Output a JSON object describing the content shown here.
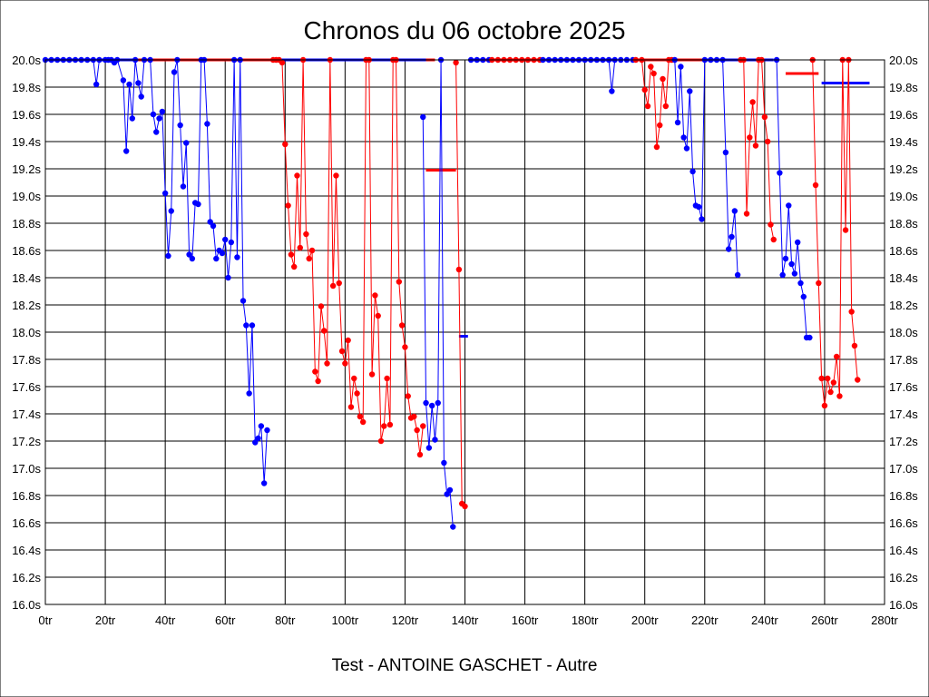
{
  "chart_data": {
    "type": "line",
    "title": "Chronos du 06 octobre 2025",
    "footer": "Test - ANTOINE GASCHET - Autre",
    "xlim": [
      0,
      280
    ],
    "ylim": [
      16.0,
      20.0
    ],
    "x_ticks": [
      "0tr",
      "20tr",
      "40tr",
      "60tr",
      "80tr",
      "100tr",
      "120tr",
      "140tr",
      "160tr",
      "180tr",
      "200tr",
      "220tr",
      "240tr",
      "260tr",
      "280tr"
    ],
    "y_ticks": [
      "16.0s",
      "16.2s",
      "16.4s",
      "16.6s",
      "16.8s",
      "17.0s",
      "17.2s",
      "17.4s",
      "17.6s",
      "17.8s",
      "18.0s",
      "18.2s",
      "18.4s",
      "18.6s",
      "18.8s",
      "19.0s",
      "19.2s",
      "19.4s",
      "19.6s",
      "19.8s",
      "20.0s"
    ],
    "grid": true,
    "colors": {
      "blue": "#0000ff",
      "red": "#ff0000",
      "axis": "#000000"
    },
    "series": [
      {
        "color": "#0000ff",
        "points": [
          [
            0,
            20
          ],
          [
            2,
            20
          ],
          [
            4,
            20
          ],
          [
            6,
            20
          ],
          [
            8,
            20
          ],
          [
            10,
            20
          ],
          [
            12,
            20
          ],
          [
            14,
            20
          ],
          [
            16,
            20
          ],
          [
            17,
            19.82
          ],
          [
            18,
            20
          ],
          [
            20,
            20
          ],
          [
            21,
            20
          ],
          [
            22,
            20
          ],
          [
            23,
            19.98
          ],
          [
            24,
            20
          ],
          [
            26,
            19.85
          ],
          [
            27,
            19.33
          ],
          [
            28,
            19.82
          ],
          [
            29,
            19.57
          ],
          [
            30,
            20
          ],
          [
            31,
            19.83
          ],
          [
            32,
            19.73
          ],
          [
            33,
            20
          ],
          [
            35,
            20
          ],
          [
            36,
            19.6
          ],
          [
            37,
            19.47
          ],
          [
            38,
            19.57
          ],
          [
            39,
            19.62
          ],
          [
            40,
            19.02
          ],
          [
            41,
            18.56
          ],
          [
            42,
            18.89
          ],
          [
            43,
            19.91
          ],
          [
            44,
            20
          ],
          [
            45,
            19.52
          ],
          [
            46,
            19.07
          ],
          [
            47,
            19.39
          ],
          [
            48,
            18.57
          ],
          [
            49,
            18.54
          ],
          [
            50,
            18.95
          ],
          [
            51,
            18.94
          ],
          [
            52,
            20
          ],
          [
            53,
            20
          ],
          [
            54,
            19.53
          ],
          [
            55,
            18.81
          ],
          [
            56,
            18.78
          ],
          [
            57,
            18.54
          ],
          [
            58,
            18.6
          ],
          [
            59,
            18.58
          ],
          [
            60,
            18.68
          ],
          [
            61,
            18.4
          ],
          [
            62,
            18.66
          ],
          [
            63,
            20
          ],
          [
            64,
            18.55
          ],
          [
            65,
            20
          ],
          [
            66,
            18.23
          ],
          [
            67,
            18.05
          ],
          [
            68,
            17.55
          ],
          [
            69,
            18.05
          ],
          [
            70,
            17.19
          ],
          [
            71,
            17.22
          ],
          [
            72,
            17.31
          ],
          [
            73,
            16.89
          ],
          [
            74,
            17.28
          ]
        ]
      },
      {
        "color": "#ff0000",
        "points": [
          [
            76,
            20
          ],
          [
            77,
            20
          ],
          [
            78,
            20
          ],
          [
            79,
            19.98
          ],
          [
            80,
            19.38
          ],
          [
            81,
            18.93
          ],
          [
            82,
            18.57
          ],
          [
            83,
            18.48
          ],
          [
            84,
            19.15
          ],
          [
            85,
            18.62
          ],
          [
            86,
            20
          ],
          [
            87,
            18.72
          ],
          [
            88,
            18.54
          ],
          [
            89,
            18.6
          ],
          [
            90,
            17.71
          ],
          [
            91,
            17.64
          ],
          [
            92,
            18.19
          ],
          [
            93,
            18.01
          ],
          [
            94,
            17.77
          ],
          [
            95,
            20
          ],
          [
            96,
            18.34
          ],
          [
            97,
            19.15
          ],
          [
            98,
            18.36
          ],
          [
            99,
            17.86
          ],
          [
            100,
            17.77
          ],
          [
            101,
            17.94
          ],
          [
            102,
            17.45
          ],
          [
            103,
            17.66
          ],
          [
            104,
            17.55
          ],
          [
            105,
            17.38
          ],
          [
            106,
            17.34
          ],
          [
            107,
            20
          ],
          [
            108,
            20
          ],
          [
            109,
            17.69
          ],
          [
            110,
            18.27
          ],
          [
            111,
            18.12
          ],
          [
            112,
            17.2
          ],
          [
            113,
            17.31
          ],
          [
            114,
            17.66
          ],
          [
            115,
            17.32
          ],
          [
            116,
            20
          ],
          [
            117,
            20
          ],
          [
            118,
            18.37
          ],
          [
            119,
            18.05
          ],
          [
            120,
            17.89
          ],
          [
            121,
            17.53
          ],
          [
            122,
            17.37
          ],
          [
            123,
            17.38
          ],
          [
            124,
            17.28
          ],
          [
            125,
            17.1
          ],
          [
            126,
            17.31
          ]
        ]
      },
      {
        "color": "#0000ff",
        "points": [
          [
            126,
            19.58
          ],
          [
            127,
            17.48
          ],
          [
            128,
            17.15
          ],
          [
            129,
            17.46
          ],
          [
            130,
            17.21
          ],
          [
            131,
            17.48
          ],
          [
            132,
            20
          ],
          [
            133,
            17.04
          ],
          [
            134,
            16.81
          ],
          [
            135,
            16.84
          ],
          [
            136,
            16.57
          ]
        ]
      },
      {
        "color": "#ff0000",
        "points": [
          [
            137,
            19.98
          ],
          [
            138,
            18.46
          ],
          [
            139,
            16.74
          ],
          [
            140,
            16.72
          ]
        ]
      },
      {
        "color": "#0000ff",
        "points": [
          [
            142,
            20
          ],
          [
            144,
            20
          ],
          [
            146,
            20
          ],
          [
            148,
            20
          ]
        ]
      },
      {
        "color": "#ff0000",
        "points": [
          [
            149,
            20
          ],
          [
            151,
            20
          ],
          [
            153,
            20
          ],
          [
            155,
            20
          ],
          [
            157,
            20
          ],
          [
            159,
            20
          ],
          [
            161,
            20
          ],
          [
            163,
            20
          ],
          [
            165,
            20
          ]
        ]
      },
      {
        "color": "#0000ff",
        "points": [
          [
            166,
            20
          ],
          [
            168,
            20
          ],
          [
            170,
            20
          ],
          [
            172,
            20
          ],
          [
            174,
            20
          ],
          [
            176,
            20
          ],
          [
            178,
            20
          ],
          [
            180,
            20
          ],
          [
            182,
            20
          ],
          [
            184,
            20
          ],
          [
            186,
            20
          ],
          [
            188,
            20
          ],
          [
            189,
            19.77
          ],
          [
            190,
            20
          ],
          [
            192,
            20
          ],
          [
            194,
            20
          ],
          [
            196,
            20
          ]
        ]
      },
      {
        "color": "#ff0000",
        "points": [
          [
            197,
            20
          ],
          [
            199,
            20
          ],
          [
            200,
            19.78
          ],
          [
            201,
            19.66
          ],
          [
            202,
            19.95
          ],
          [
            203,
            19.9
          ],
          [
            204,
            19.36
          ],
          [
            205,
            19.52
          ],
          [
            206,
            19.86
          ],
          [
            207,
            19.66
          ],
          [
            208,
            20
          ],
          [
            209,
            20
          ]
        ]
      },
      {
        "color": "#0000ff",
        "points": [
          [
            210,
            20
          ],
          [
            211,
            19.54
          ],
          [
            212,
            19.95
          ],
          [
            213,
            19.43
          ],
          [
            214,
            19.35
          ],
          [
            215,
            19.77
          ],
          [
            216,
            19.18
          ],
          [
            217,
            18.93
          ],
          [
            218,
            18.92
          ],
          [
            219,
            18.83
          ],
          [
            220,
            20
          ],
          [
            222,
            20
          ],
          [
            224,
            20
          ],
          [
            226,
            20
          ],
          [
            227,
            19.32
          ],
          [
            228,
            18.61
          ],
          [
            229,
            18.7
          ],
          [
            230,
            18.89
          ],
          [
            231,
            18.42
          ]
        ]
      },
      {
        "color": "#ff0000",
        "points": [
          [
            232,
            20
          ],
          [
            233,
            20
          ],
          [
            234,
            18.87
          ],
          [
            235,
            19.43
          ],
          [
            236,
            19.69
          ],
          [
            237,
            19.37
          ],
          [
            238,
            20
          ],
          [
            239,
            20
          ],
          [
            240,
            19.58
          ],
          [
            241,
            19.4
          ],
          [
            242,
            18.79
          ],
          [
            243,
            18.68
          ]
        ]
      },
      {
        "color": "#0000ff",
        "points": [
          [
            244,
            20
          ],
          [
            245,
            19.17
          ],
          [
            246,
            18.42
          ],
          [
            247,
            18.54
          ],
          [
            248,
            18.93
          ],
          [
            249,
            18.5
          ],
          [
            250,
            18.43
          ],
          [
            251,
            18.66
          ],
          [
            252,
            18.36
          ],
          [
            253,
            18.26
          ],
          [
            254,
            17.96
          ],
          [
            255,
            17.96
          ]
        ]
      },
      {
        "color": "#ff0000",
        "points": [
          [
            256,
            20
          ],
          [
            257,
            19.08
          ],
          [
            258,
            18.36
          ],
          [
            259,
            17.66
          ],
          [
            260,
            17.46
          ],
          [
            261,
            17.66
          ],
          [
            262,
            17.56
          ],
          [
            263,
            17.63
          ],
          [
            264,
            17.82
          ],
          [
            265,
            17.53
          ],
          [
            266,
            20
          ],
          [
            267,
            18.75
          ],
          [
            268,
            20
          ],
          [
            269,
            18.15
          ],
          [
            270,
            17.9
          ],
          [
            271,
            17.65
          ]
        ]
      }
    ],
    "segments": [
      {
        "color": "#0000ff",
        "y": 20.0,
        "x": [
          0,
          16
        ]
      },
      {
        "color": "#0000ff",
        "y": 20.0,
        "x": [
          17,
          31
        ]
      },
      {
        "color": "#ff0000",
        "y": 20.0,
        "x": [
          31,
          130
        ]
      },
      {
        "color": "#0000ff",
        "y": 20.0,
        "x": [
          78,
          127
        ]
      },
      {
        "color": "#ff0000",
        "y": 19.19,
        "x": [
          127,
          137
        ]
      },
      {
        "color": "#0000ff",
        "y": 17.97,
        "x": [
          138,
          141
        ]
      },
      {
        "color": "#0000ff",
        "y": 20.0,
        "x": [
          142,
          190
        ]
      },
      {
        "color": "#ff0000",
        "y": 20.0,
        "x": [
          146,
          166
        ]
      },
      {
        "color": "#ff0000",
        "y": 20.0,
        "x": [
          196,
          232
        ]
      },
      {
        "color": "#0000ff",
        "y": 20.0,
        "x": [
          220,
          243
        ]
      },
      {
        "color": "#ff0000",
        "y": 19.9,
        "x": [
          247,
          258
        ]
      },
      {
        "color": "#0000ff",
        "y": 19.83,
        "x": [
          259,
          275
        ]
      }
    ]
  }
}
